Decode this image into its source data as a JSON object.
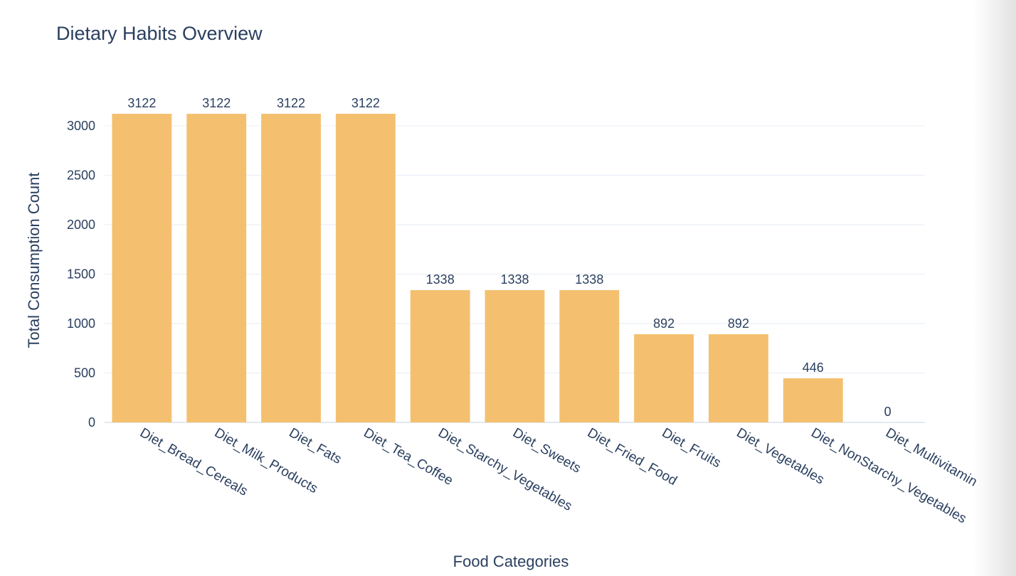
{
  "chart_data": {
    "type": "bar",
    "title": "Dietary Habits Overview",
    "xlabel": "Food Categories",
    "ylabel": "Total Consumption Count",
    "categories": [
      "Diet_Bread_Cereals",
      "Diet_Milk_Products",
      "Diet_Fats",
      "Diet_Tea_Coffee",
      "Diet_Starchy_Vegetables",
      "Diet_Sweets",
      "Diet_Fried_Food",
      "Diet_Fruits",
      "Diet_Vegetables",
      "Diet_NonStarchy_Vegetables",
      "Diet_Multivitamin"
    ],
    "values": [
      3122,
      3122,
      3122,
      3122,
      1338,
      1338,
      1338,
      892,
      892,
      446,
      0
    ],
    "ylim": [
      0,
      3122
    ],
    "yticks": [
      0,
      500,
      1000,
      1500,
      2000,
      2500,
      3000
    ],
    "grid": true,
    "bar_color": "#f4c06f",
    "text_color": "#2a3f5f",
    "grid_color": "#ebf0f8"
  }
}
